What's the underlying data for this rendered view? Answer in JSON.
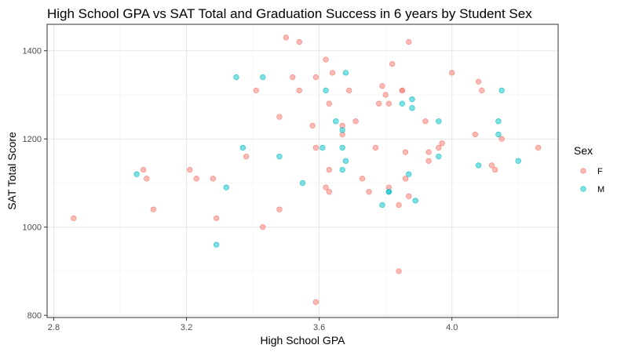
{
  "chart_data": {
    "type": "scatter",
    "title": "High School GPA vs SAT Total and Graduation Success in 6 years by Student Sex",
    "xlabel": "High School GPA",
    "ylabel": "SAT Total Score",
    "xlim": [
      2.78,
      4.32
    ],
    "ylim": [
      795,
      1460
    ],
    "x_ticks": [
      2.8,
      3.2,
      3.6,
      4.0
    ],
    "x_tick_labels": [
      "2.8",
      "3.2",
      "3.6",
      "4.0"
    ],
    "y_ticks": [
      800,
      1000,
      1200,
      1400
    ],
    "y_tick_labels": [
      "800",
      "1000",
      "1200",
      "1400"
    ],
    "grid": true,
    "legend": {
      "title": "Sex",
      "position": "right"
    },
    "series": [
      {
        "name": "F",
        "color": "#f8766d",
        "points": [
          [
            2.86,
            1020
          ],
          [
            3.07,
            1130
          ],
          [
            3.08,
            1110
          ],
          [
            3.1,
            1040
          ],
          [
            3.21,
            1130
          ],
          [
            3.23,
            1110
          ],
          [
            3.28,
            1110
          ],
          [
            3.29,
            1020
          ],
          [
            3.38,
            1160
          ],
          [
            3.41,
            1310
          ],
          [
            3.43,
            1000
          ],
          [
            3.48,
            1250
          ],
          [
            3.48,
            1040
          ],
          [
            3.5,
            1430
          ],
          [
            3.52,
            1340
          ],
          [
            3.54,
            1420
          ],
          [
            3.54,
            1310
          ],
          [
            3.58,
            1230
          ],
          [
            3.59,
            1340
          ],
          [
            3.59,
            1180
          ],
          [
            3.59,
            830
          ],
          [
            3.62,
            1380
          ],
          [
            3.62,
            1090
          ],
          [
            3.63,
            1280
          ],
          [
            3.63,
            1130
          ],
          [
            3.63,
            1080
          ],
          [
            3.64,
            1350
          ],
          [
            3.67,
            1230
          ],
          [
            3.67,
            1210
          ],
          [
            3.69,
            1310
          ],
          [
            3.71,
            1240
          ],
          [
            3.73,
            1110
          ],
          [
            3.75,
            1080
          ],
          [
            3.77,
            1180
          ],
          [
            3.78,
            1280
          ],
          [
            3.79,
            1320
          ],
          [
            3.8,
            1300
          ],
          [
            3.81,
            1280
          ],
          [
            3.81,
            1090
          ],
          [
            3.82,
            1370
          ],
          [
            3.84,
            1050
          ],
          [
            3.84,
            900
          ],
          [
            3.85,
            1310
          ],
          [
            3.85,
            1310
          ],
          [
            3.86,
            1170
          ],
          [
            3.86,
            1110
          ],
          [
            3.87,
            1420
          ],
          [
            3.87,
            1070
          ],
          [
            3.92,
            1240
          ],
          [
            3.93,
            1170
          ],
          [
            3.93,
            1150
          ],
          [
            3.96,
            1180
          ],
          [
            3.97,
            1190
          ],
          [
            4.0,
            1350
          ],
          [
            4.07,
            1210
          ],
          [
            4.08,
            1330
          ],
          [
            4.09,
            1310
          ],
          [
            4.12,
            1140
          ],
          [
            4.13,
            1130
          ],
          [
            4.15,
            1200
          ],
          [
            4.26,
            1180
          ]
        ]
      },
      {
        "name": "M",
        "color": "#00bfc4",
        "points": [
          [
            3.05,
            1120
          ],
          [
            3.29,
            960
          ],
          [
            3.32,
            1090
          ],
          [
            3.35,
            1340
          ],
          [
            3.37,
            1180
          ],
          [
            3.43,
            1340
          ],
          [
            3.48,
            1160
          ],
          [
            3.55,
            1100
          ],
          [
            3.61,
            1180
          ],
          [
            3.62,
            1310
          ],
          [
            3.65,
            1240
          ],
          [
            3.67,
            1220
          ],
          [
            3.67,
            1180
          ],
          [
            3.67,
            1130
          ],
          [
            3.68,
            1350
          ],
          [
            3.68,
            1150
          ],
          [
            3.79,
            1050
          ],
          [
            3.81,
            1080
          ],
          [
            3.81,
            1080
          ],
          [
            3.85,
            1280
          ],
          [
            3.87,
            1120
          ],
          [
            3.88,
            1290
          ],
          [
            3.88,
            1270
          ],
          [
            3.89,
            1060
          ],
          [
            3.96,
            1240
          ],
          [
            3.96,
            1160
          ],
          [
            4.08,
            1140
          ],
          [
            4.14,
            1240
          ],
          [
            4.14,
            1210
          ],
          [
            4.15,
            1310
          ],
          [
            4.2,
            1150
          ]
        ]
      }
    ]
  }
}
